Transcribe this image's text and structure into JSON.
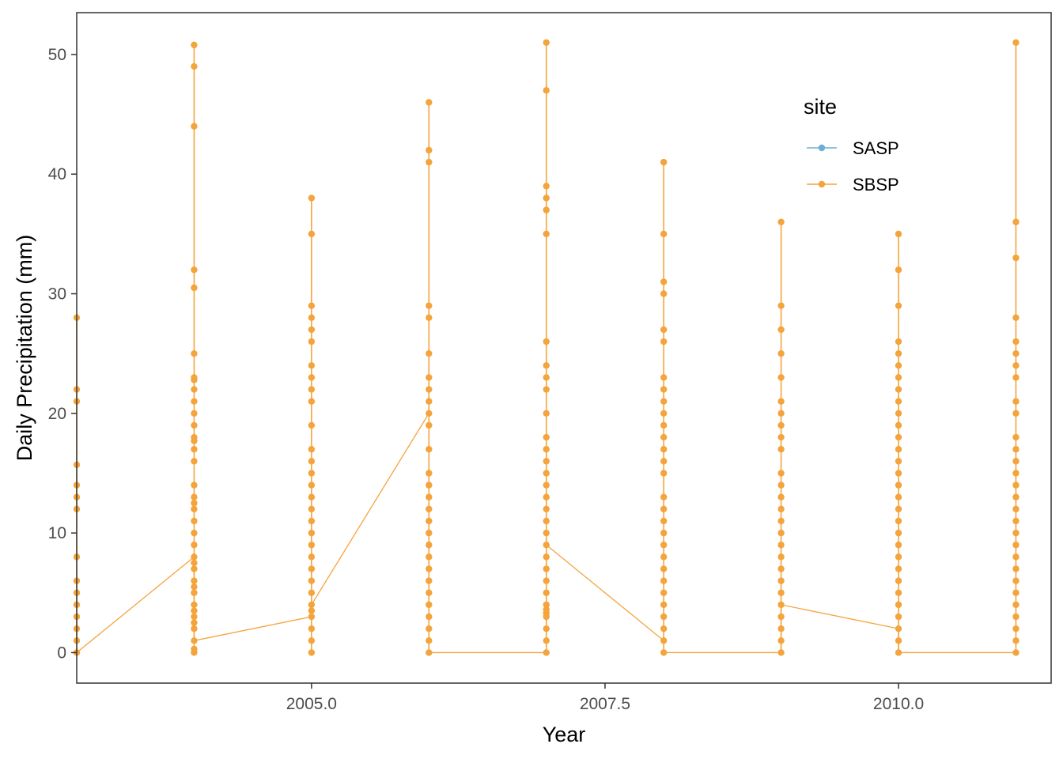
{
  "chart_data": {
    "type": "line",
    "title": "",
    "xlabel": "Year",
    "ylabel": "Daily Precipitation (mm)",
    "xlim": [
      2003.0,
      2011.3
    ],
    "ylim": [
      -2.55,
      53.5
    ],
    "x_ticks": [
      2005.0,
      2007.5,
      2010.0
    ],
    "x_tick_labels": [
      "2005.0",
      "2007.5",
      "2010.0"
    ],
    "y_ticks": [
      0,
      10,
      20,
      30,
      40,
      50
    ],
    "y_tick_labels": [
      "0",
      "10",
      "20",
      "30",
      "40",
      "50"
    ],
    "grid": false,
    "legend": {
      "title": "site",
      "position": "top-right",
      "entries": [
        {
          "name": "SASP",
          "color": "#6baed6"
        },
        {
          "name": "SBSP",
          "color": "#f4a43c"
        }
      ]
    },
    "series": [
      {
        "name": "SASP",
        "color": "#6baed6",
        "groups": []
      },
      {
        "name": "SBSP",
        "color": "#f4a43c",
        "groups": [
          {
            "x": 2003,
            "values": [
              0,
              1,
              2,
              3,
              4,
              5,
              6,
              8,
              12,
              13,
              14,
              15.7,
              21,
              22,
              28
            ]
          },
          {
            "x": 2004,
            "values": [
              0,
              0.3,
              1,
              2,
              2.5,
              3,
              3.5,
              4,
              5,
              5.5,
              6,
              7,
              7.5,
              8,
              9,
              10,
              11,
              12,
              12.5,
              13,
              14,
              16,
              17,
              17.7,
              18,
              19,
              20,
              21,
              22,
              22.8,
              23,
              25,
              30.5,
              32,
              44,
              49,
              50.8
            ]
          },
          {
            "x": 2005,
            "values": [
              0,
              1,
              2,
              3,
              3.5,
              4,
              5,
              6,
              7,
              8,
              9,
              10,
              11,
              12,
              13,
              14,
              15,
              16,
              17,
              19,
              21,
              22,
              23,
              24,
              26,
              27,
              28,
              29,
              35,
              38
            ]
          },
          {
            "x": 2006,
            "values": [
              0,
              1,
              2,
              3,
              4,
              5,
              6,
              7,
              8,
              9,
              10,
              11,
              12,
              13,
              14,
              15,
              17,
              19,
              20,
              21,
              22,
              23,
              25,
              28,
              29,
              41,
              42,
              46
            ]
          },
          {
            "x": 2007,
            "values": [
              0,
              1,
              2,
              3,
              3.3,
              3.6,
              4,
              5,
              6,
              7,
              8,
              9,
              10,
              11,
              12,
              13,
              14,
              15,
              16,
              17,
              18,
              20,
              22,
              23,
              24,
              26,
              35,
              37,
              38,
              39,
              47,
              51
            ]
          },
          {
            "x": 2008,
            "values": [
              0,
              1,
              2,
              3,
              4,
              5,
              6,
              7,
              8,
              9,
              10,
              11,
              12,
              13,
              15,
              16,
              17,
              18,
              19,
              20,
              21,
              22,
              23,
              26,
              27,
              30,
              31,
              35,
              41
            ]
          },
          {
            "x": 2009,
            "values": [
              0,
              1,
              2,
              3,
              4,
              5,
              6,
              7,
              8,
              9,
              10,
              11,
              12,
              13,
              14,
              15,
              17,
              18,
              19,
              20,
              21,
              23,
              25,
              27,
              29,
              36
            ]
          },
          {
            "x": 2010,
            "values": [
              0,
              1,
              2,
              3,
              4,
              5,
              6,
              7,
              8,
              9,
              10,
              11,
              12,
              13,
              14,
              15,
              16,
              17,
              18,
              19,
              20,
              21,
              22,
              23,
              24,
              25,
              26,
              29,
              32,
              35
            ]
          },
          {
            "x": 2011,
            "values": [
              0,
              1,
              2,
              3,
              4,
              5,
              6,
              7,
              8,
              9,
              10,
              11,
              12,
              13,
              14,
              15,
              16,
              17,
              18,
              20,
              21,
              23,
              24,
              25,
              26,
              28,
              33,
              36,
              51
            ]
          }
        ],
        "connector_path": [
          [
            2003,
            0
          ],
          [
            2004,
            8
          ],
          [
            2004,
            1
          ],
          [
            2005,
            3
          ],
          [
            2005,
            4
          ],
          [
            2006,
            20
          ],
          [
            2006,
            0
          ],
          [
            2007,
            0
          ],
          [
            2007,
            9
          ],
          [
            2008,
            1
          ],
          [
            2008,
            0
          ],
          [
            2009,
            0
          ],
          [
            2009,
            4
          ],
          [
            2010,
            2
          ],
          [
            2010,
            0
          ],
          [
            2011,
            0
          ]
        ]
      }
    ]
  }
}
